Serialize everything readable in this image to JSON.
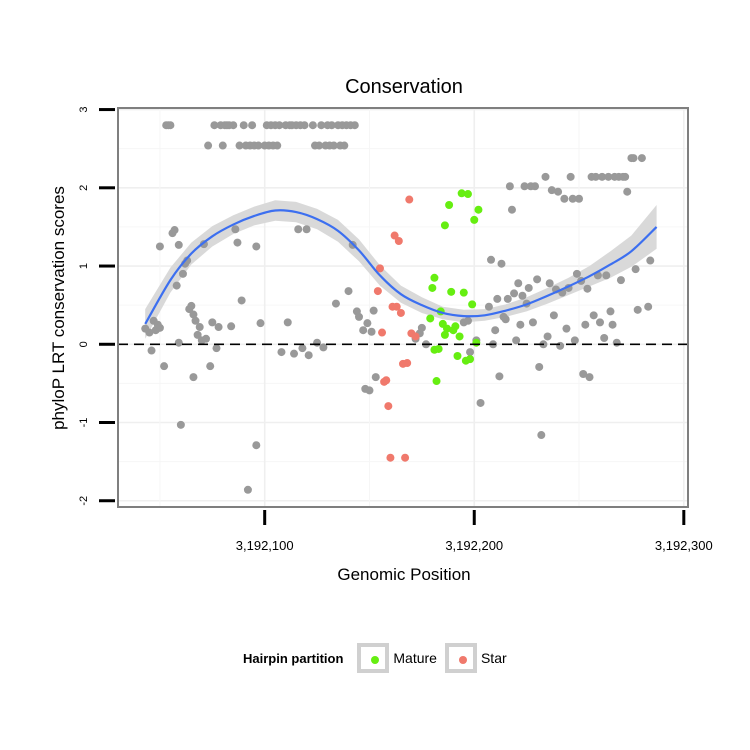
{
  "chart_data": {
    "type": "scatter",
    "title": "Conservation",
    "xlabel": "Genomic Position",
    "ylabel": "phyloP LRT conservation scores",
    "xlim": [
      3192030,
      3192302
    ],
    "ylim": [
      -2.08,
      3.02
    ],
    "x_ticks": [
      3192100,
      3192200,
      3192300
    ],
    "x_tick_labels": [
      "3,192,100",
      "3,192,200",
      "3,192,300"
    ],
    "y_ticks": [
      -2,
      -1,
      0,
      1,
      2,
      3
    ],
    "y_tick_labels": [
      "-2",
      "-1",
      "0",
      "1",
      "2",
      "3"
    ],
    "grid": true,
    "reference_line": {
      "y": 0,
      "style": "dashed"
    },
    "legend": {
      "title": "Hairpin partition",
      "placement": "bottom",
      "entries": [
        {
          "name": "Mature",
          "color": "#66ee11"
        },
        {
          "name": "Star",
          "color": "#f0796c"
        }
      ]
    },
    "colors": {
      "other": "#999999",
      "Mature": "#66ee11",
      "Star": "#f0796c",
      "smooth_line": "#3c6ff0",
      "confidence_band": "#d9d9d9"
    },
    "series": [
      {
        "group": "other",
        "points": [
          [
            3192043,
            0.2
          ],
          [
            3192045,
            0.15
          ],
          [
            3192046,
            -0.08
          ],
          [
            3192047,
            0.3
          ],
          [
            3192048,
            0.18
          ],
          [
            3192049,
            0.25
          ],
          [
            3192050,
            1.25
          ],
          [
            3192050,
            0.21
          ],
          [
            3192052,
            -0.28
          ],
          [
            3192053,
            2.8
          ],
          [
            3192054,
            2.8
          ],
          [
            3192055,
            2.8
          ],
          [
            3192056,
            1.42
          ],
          [
            3192057,
            1.46
          ],
          [
            3192058,
            0.75
          ],
          [
            3192059,
            0.02
          ],
          [
            3192059,
            1.27
          ],
          [
            3192060,
            -1.03
          ],
          [
            3192061,
            0.9
          ],
          [
            3192062,
            1.03
          ],
          [
            3192063,
            1.07
          ],
          [
            3192064,
            0.45
          ],
          [
            3192065,
            0.49
          ],
          [
            3192066,
            -0.42
          ],
          [
            3192066,
            0.38
          ],
          [
            3192067,
            0.3
          ],
          [
            3192068,
            0.12
          ],
          [
            3192069,
            0.22
          ],
          [
            3192070,
            0.05
          ],
          [
            3192071,
            1.28
          ],
          [
            3192072,
            0.07
          ],
          [
            3192073,
            2.54
          ],
          [
            3192074,
            -0.28
          ],
          [
            3192075,
            0.28
          ],
          [
            3192076,
            2.8
          ],
          [
            3192077,
            -0.05
          ],
          [
            3192078,
            0.22
          ],
          [
            3192079,
            2.8
          ],
          [
            3192080,
            2.54
          ],
          [
            3192081,
            2.8
          ],
          [
            3192082,
            2.8
          ],
          [
            3192083,
            2.8
          ],
          [
            3192084,
            0.23
          ],
          [
            3192085,
            2.8
          ],
          [
            3192086,
            1.47
          ],
          [
            3192087,
            1.3
          ],
          [
            3192088,
            2.54
          ],
          [
            3192089,
            0.56
          ],
          [
            3192090,
            2.8
          ],
          [
            3192091,
            2.54
          ],
          [
            3192092,
            -1.86
          ],
          [
            3192093,
            2.54
          ],
          [
            3192094,
            2.8
          ],
          [
            3192095,
            2.54
          ],
          [
            3192096,
            1.25
          ],
          [
            3192096,
            -1.29
          ],
          [
            3192097,
            2.54
          ],
          [
            3192098,
            0.27
          ],
          [
            3192100,
            2.54
          ],
          [
            3192101,
            2.8
          ],
          [
            3192102,
            2.54
          ],
          [
            3192103,
            2.8
          ],
          [
            3192104,
            2.54
          ],
          [
            3192105,
            2.8
          ],
          [
            3192106,
            2.54
          ],
          [
            3192107,
            2.8
          ],
          [
            3192108,
            -0.1
          ],
          [
            3192110,
            2.8
          ],
          [
            3192111,
            0.28
          ],
          [
            3192112,
            2.8
          ],
          [
            3192113,
            2.8
          ],
          [
            3192114,
            -0.12
          ],
          [
            3192115,
            2.8
          ],
          [
            3192116,
            1.47
          ],
          [
            3192117,
            2.8
          ],
          [
            3192118,
            -0.05
          ],
          [
            3192119,
            2.8
          ],
          [
            3192120,
            1.47
          ],
          [
            3192121,
            -0.14
          ],
          [
            3192123,
            2.8
          ],
          [
            3192124,
            2.54
          ],
          [
            3192125,
            0.02
          ],
          [
            3192126,
            2.54
          ],
          [
            3192127,
            2.8
          ],
          [
            3192128,
            -0.04
          ],
          [
            3192129,
            2.54
          ],
          [
            3192130,
            2.8
          ],
          [
            3192131,
            2.54
          ],
          [
            3192132,
            2.8
          ],
          [
            3192133,
            2.54
          ],
          [
            3192134,
            0.52
          ],
          [
            3192135,
            2.8
          ],
          [
            3192136,
            2.54
          ],
          [
            3192137,
            2.8
          ],
          [
            3192138,
            2.54
          ],
          [
            3192139,
            2.8
          ],
          [
            3192140,
            0.68
          ],
          [
            3192141,
            2.8
          ],
          [
            3192142,
            1.27
          ],
          [
            3192143,
            2.8
          ],
          [
            3192144,
            0.42
          ],
          [
            3192145,
            0.35
          ],
          [
            3192147,
            0.18
          ],
          [
            3192148,
            -0.57
          ],
          [
            3192149,
            0.27
          ],
          [
            3192150,
            -0.59
          ],
          [
            3192151,
            0.16
          ],
          [
            3192152,
            0.43
          ],
          [
            3192153,
            -0.42
          ],
          [
            3192172,
            0.07
          ],
          [
            3192174,
            0.14
          ],
          [
            3192175,
            0.21
          ],
          [
            3192177,
            0.0
          ],
          [
            3192195,
            0.28
          ],
          [
            3192197,
            0.3
          ],
          [
            3192198,
            -0.1
          ],
          [
            3192201,
            0.05
          ],
          [
            3192203,
            -0.75
          ],
          [
            3192207,
            0.48
          ],
          [
            3192208,
            1.08
          ],
          [
            3192209,
            0.0
          ],
          [
            3192210,
            0.18
          ],
          [
            3192211,
            0.58
          ],
          [
            3192212,
            -0.41
          ],
          [
            3192213,
            1.03
          ],
          [
            3192214,
            0.35
          ],
          [
            3192215,
            0.32
          ],
          [
            3192216,
            0.58
          ],
          [
            3192217,
            2.02
          ],
          [
            3192218,
            1.72
          ],
          [
            3192219,
            0.65
          ],
          [
            3192220,
            0.05
          ],
          [
            3192221,
            0.78
          ],
          [
            3192222,
            0.25
          ],
          [
            3192223,
            0.62
          ],
          [
            3192224,
            2.02
          ],
          [
            3192225,
            0.52
          ],
          [
            3192226,
            0.72
          ],
          [
            3192227,
            2.02
          ],
          [
            3192228,
            0.28
          ],
          [
            3192229,
            2.02
          ],
          [
            3192230,
            0.83
          ],
          [
            3192231,
            -0.29
          ],
          [
            3192232,
            -1.16
          ],
          [
            3192233,
            0.0
          ],
          [
            3192234,
            2.14
          ],
          [
            3192235,
            0.1
          ],
          [
            3192236,
            0.78
          ],
          [
            3192237,
            1.97
          ],
          [
            3192238,
            0.37
          ],
          [
            3192239,
            0.7
          ],
          [
            3192240,
            1.95
          ],
          [
            3192241,
            -0.02
          ],
          [
            3192242,
            0.66
          ],
          [
            3192243,
            1.86
          ],
          [
            3192244,
            0.2
          ],
          [
            3192245,
            0.72
          ],
          [
            3192246,
            2.14
          ],
          [
            3192247,
            1.86
          ],
          [
            3192248,
            0.05
          ],
          [
            3192249,
            0.9
          ],
          [
            3192250,
            1.86
          ],
          [
            3192251,
            0.81
          ],
          [
            3192252,
            -0.38
          ],
          [
            3192253,
            0.25
          ],
          [
            3192254,
            0.71
          ],
          [
            3192255,
            -0.42
          ],
          [
            3192256,
            2.14
          ],
          [
            3192257,
            0.37
          ],
          [
            3192258,
            2.14
          ],
          [
            3192259,
            0.88
          ],
          [
            3192260,
            0.28
          ],
          [
            3192261,
            2.14
          ],
          [
            3192262,
            0.08
          ],
          [
            3192263,
            0.88
          ],
          [
            3192264,
            2.14
          ],
          [
            3192265,
            0.42
          ],
          [
            3192266,
            0.25
          ],
          [
            3192267,
            2.14
          ],
          [
            3192268,
            0.02
          ],
          [
            3192269,
            2.14
          ],
          [
            3192270,
            0.82
          ],
          [
            3192271,
            2.14
          ],
          [
            3192272,
            2.14
          ],
          [
            3192273,
            1.95
          ],
          [
            3192275,
            2.38
          ],
          [
            3192276,
            2.38
          ],
          [
            3192277,
            0.96
          ],
          [
            3192278,
            0.44
          ],
          [
            3192280,
            2.38
          ],
          [
            3192283,
            0.48
          ],
          [
            3192284,
            1.07
          ]
        ]
      },
      {
        "group": "Mature",
        "points": [
          [
            3192179,
            0.33
          ],
          [
            3192180,
            0.72
          ],
          [
            3192181,
            0.85
          ],
          [
            3192181,
            -0.07
          ],
          [
            3192182,
            -0.47
          ],
          [
            3192183,
            -0.06
          ],
          [
            3192184,
            0.42
          ],
          [
            3192185,
            0.26
          ],
          [
            3192186,
            1.52
          ],
          [
            3192186,
            0.12
          ],
          [
            3192187,
            0.2
          ],
          [
            3192188,
            1.78
          ],
          [
            3192189,
            0.67
          ],
          [
            3192190,
            0.18
          ],
          [
            3192191,
            0.23
          ],
          [
            3192192,
            -0.15
          ],
          [
            3192193,
            0.1
          ],
          [
            3192194,
            1.93
          ],
          [
            3192195,
            0.66
          ],
          [
            3192196,
            -0.21
          ],
          [
            3192197,
            1.92
          ],
          [
            3192198,
            -0.19
          ],
          [
            3192199,
            0.51
          ],
          [
            3192200,
            1.59
          ],
          [
            3192201,
            0.02
          ],
          [
            3192202,
            1.72
          ]
        ]
      },
      {
        "group": "Star",
        "points": [
          [
            3192155,
            0.97
          ],
          [
            3192156,
            0.15
          ],
          [
            3192157,
            -0.48
          ],
          [
            3192158,
            -0.46
          ],
          [
            3192159,
            -0.79
          ],
          [
            3192160,
            -1.45
          ],
          [
            3192161,
            0.48
          ],
          [
            3192162,
            1.39
          ],
          [
            3192163,
            0.48
          ],
          [
            3192164,
            1.32
          ],
          [
            3192165,
            0.4
          ],
          [
            3192166,
            -0.25
          ],
          [
            3192167,
            -1.45
          ],
          [
            3192168,
            -0.24
          ],
          [
            3192169,
            1.85
          ],
          [
            3192170,
            0.14
          ],
          [
            3192172,
            0.1
          ],
          [
            3192154,
            0.68
          ]
        ]
      }
    ],
    "smooth_fit": {
      "x": [
        3192043,
        3192055,
        3192065,
        3192075,
        3192085,
        3192095,
        3192105,
        3192115,
        3192125,
        3192135,
        3192145,
        3192155,
        3192165,
        3192175,
        3192185,
        3192195,
        3192205,
        3192215,
        3192225,
        3192235,
        3192245,
        3192255,
        3192265,
        3192275,
        3192287
      ],
      "y": [
        0.26,
        0.82,
        1.16,
        1.38,
        1.53,
        1.64,
        1.71,
        1.69,
        1.6,
        1.45,
        1.2,
        0.88,
        0.64,
        0.5,
        0.4,
        0.36,
        0.37,
        0.43,
        0.51,
        0.62,
        0.74,
        0.87,
        1.02,
        1.19,
        1.5
      ],
      "ci_lower": [
        0.07,
        0.66,
        1.02,
        1.25,
        1.41,
        1.52,
        1.58,
        1.56,
        1.47,
        1.31,
        1.06,
        0.75,
        0.53,
        0.4,
        0.32,
        0.28,
        0.3,
        0.35,
        0.42,
        0.52,
        0.63,
        0.74,
        0.85,
        0.99,
        1.22
      ],
      "ci_upper": [
        0.45,
        0.98,
        1.3,
        1.51,
        1.65,
        1.76,
        1.84,
        1.82,
        1.73,
        1.59,
        1.34,
        1.01,
        0.75,
        0.6,
        0.48,
        0.44,
        0.45,
        0.51,
        0.6,
        0.72,
        0.85,
        1.0,
        1.19,
        1.39,
        1.78
      ]
    }
  }
}
